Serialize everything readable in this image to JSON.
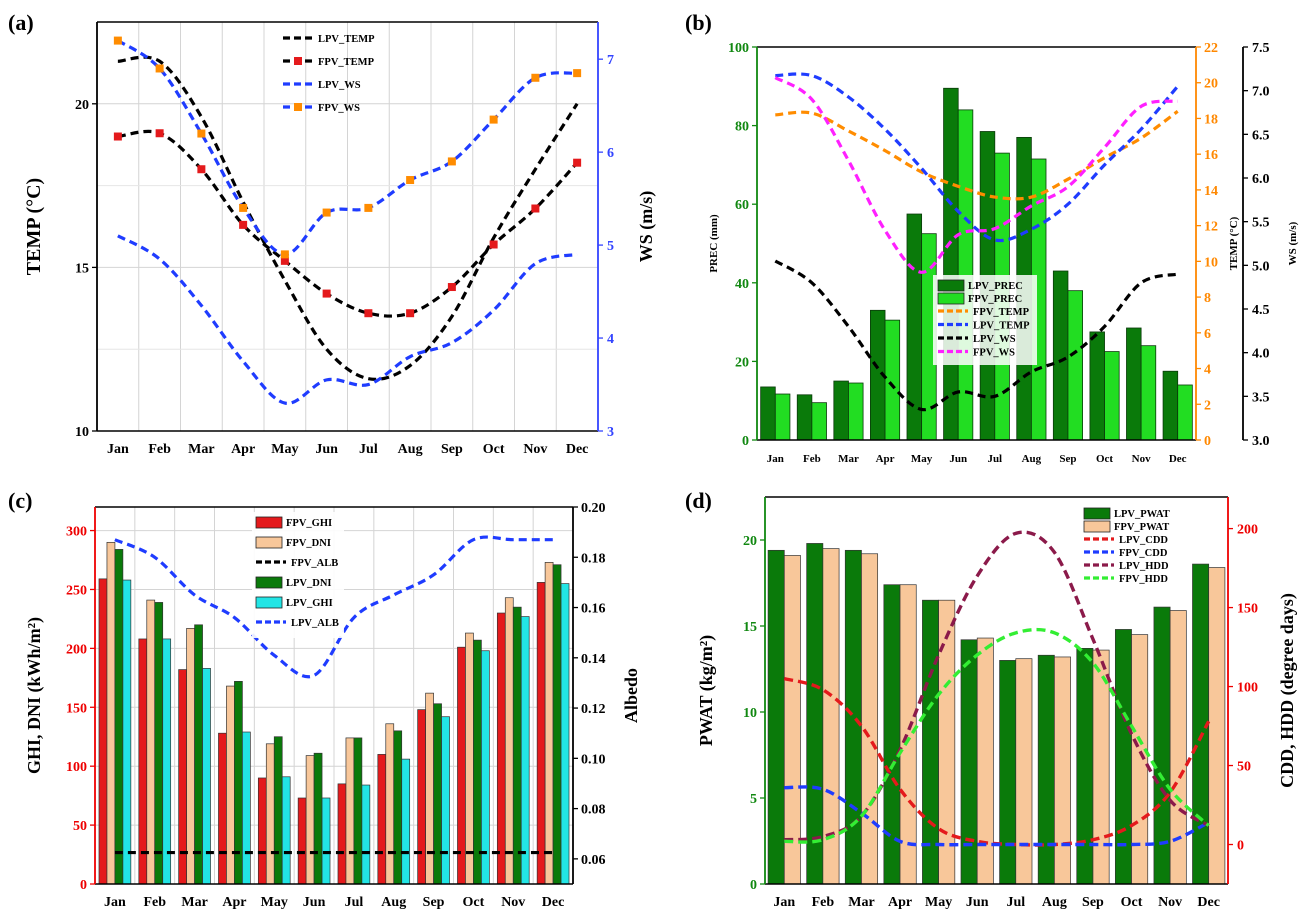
{
  "colors": {
    "black": "#000000",
    "red": "#e41a1c",
    "orange": "#ff8c00",
    "blue": "#1f3cff",
    "dark_green": "#0a7a0a",
    "light_green": "#22dd22",
    "tan": "#f8c79a",
    "cyan": "#22e5e5",
    "magenta": "#ff20ff",
    "maroon": "#8b1a4a",
    "lime": "#33ee33",
    "axis_red": "#ee0000",
    "axis_blue": "#3344ff",
    "axis_green": "#118811",
    "axis_orange": "#ff8800",
    "grid": "#d4d4d4"
  },
  "chart_data": [
    {
      "panel_label": "(a)",
      "type": "line",
      "categories": [
        "Jan",
        "Feb",
        "Mar",
        "Apr",
        "May",
        "Jun",
        "Jul",
        "Aug",
        "Sep",
        "Oct",
        "Nov",
        "Dec"
      ],
      "ylabel": "TEMP (°C)",
      "y2label": "WS (m/s)",
      "ylim": [
        10,
        22.5
      ],
      "y2lim": [
        3,
        7.4
      ],
      "yticks": [
        10,
        15,
        20
      ],
      "y2ticks": [
        3,
        4,
        5,
        6,
        7
      ],
      "grid": true,
      "legend_position": "top-center",
      "series": [
        {
          "name": "LPV_TEMP",
          "axis": "left",
          "color": "black",
          "marker": false,
          "values": [
            21.3,
            21.3,
            19.6,
            17.0,
            14.6,
            12.5,
            11.6,
            12.0,
            13.5,
            15.9,
            18.0,
            20.0
          ]
        },
        {
          "name": "FPV_TEMP",
          "axis": "left",
          "color": "black",
          "marker": true,
          "marker_color": "red",
          "values": [
            19.0,
            19.1,
            18.0,
            16.3,
            15.2,
            14.2,
            13.6,
            13.6,
            14.4,
            15.7,
            16.8,
            18.2
          ]
        },
        {
          "name": "LPV_WS",
          "axis": "right",
          "color": "blue",
          "marker": false,
          "values": [
            5.1,
            4.85,
            4.35,
            3.75,
            3.3,
            3.55,
            3.5,
            3.8,
            3.95,
            4.3,
            4.8,
            4.9
          ]
        },
        {
          "name": "FPV_WS",
          "axis": "right",
          "color": "blue",
          "marker": true,
          "marker_color": "orange",
          "values": [
            7.2,
            6.9,
            6.2,
            5.4,
            4.9,
            5.35,
            5.4,
            5.7,
            5.9,
            6.35,
            6.8,
            6.85
          ]
        }
      ]
    },
    {
      "panel_label": "(b)",
      "type": "bar",
      "categories": [
        "Jan",
        "Feb",
        "Mar",
        "Apr",
        "May",
        "Jun",
        "Jul",
        "Aug",
        "Sep",
        "Oct",
        "Nov",
        "Dec"
      ],
      "ylabel": "PREC (mm)",
      "y2label": "TEMP (°C)",
      "y3label": "WS (m/s)",
      "ylim": [
        0,
        100
      ],
      "y2lim": [
        0,
        22
      ],
      "y3lim": [
        3.0,
        7.5
      ],
      "yticks": [
        0,
        20,
        40,
        60,
        80,
        100
      ],
      "y2ticks": [
        0,
        2,
        4,
        6,
        8,
        10,
        12,
        14,
        16,
        18,
        20,
        22
      ],
      "y3ticks": [
        "3.0",
        "3.5",
        "4.0",
        "4.5",
        "5.0",
        "5.5",
        "6.0",
        "6.5",
        "7.0",
        "7.5"
      ],
      "legend_position": "center",
      "bars": [
        {
          "name": "LPV_PREC",
          "color": "dark_green",
          "values": [
            13.5,
            11.5,
            15,
            33,
            57.5,
            89.5,
            78.5,
            77,
            43,
            27.5,
            28.5,
            17.5
          ]
        },
        {
          "name": "FPV_PREC",
          "color": "light_green",
          "values": [
            11.7,
            9.5,
            14.5,
            30.5,
            52.5,
            84,
            73,
            71.5,
            38,
            22.5,
            24,
            14
          ]
        }
      ],
      "lines": [
        {
          "name": "FPV_TEMP",
          "axis": "temp",
          "color": "orange",
          "values": [
            18.2,
            18.3,
            17.3,
            16.2,
            15.0,
            14.2,
            13.6,
            13.6,
            14.6,
            15.8,
            16.9,
            18.4
          ]
        },
        {
          "name": "LPV_TEMP",
          "axis": "temp",
          "color": "blue",
          "values": [
            20.4,
            20.4,
            19.2,
            17.4,
            15.2,
            12.8,
            11.2,
            11.8,
            13.2,
            15.4,
            17.4,
            19.8
          ]
        },
        {
          "name": "LPV_WS",
          "axis": "ws",
          "color": "black",
          "values": [
            5.05,
            4.8,
            4.3,
            3.72,
            3.35,
            3.55,
            3.5,
            3.78,
            3.95,
            4.3,
            4.8,
            4.9
          ]
        },
        {
          "name": "FPV_WS",
          "axis": "ws",
          "color": "magenta",
          "values": [
            7.15,
            6.9,
            6.2,
            5.4,
            4.92,
            5.35,
            5.42,
            5.68,
            5.9,
            6.35,
            6.82,
            6.88
          ]
        }
      ]
    },
    {
      "panel_label": "(c)",
      "type": "bar",
      "categories": [
        "Jan",
        "Feb",
        "Mar",
        "Apr",
        "May",
        "Jun",
        "Jul",
        "Aug",
        "Sep",
        "Oct",
        "Nov",
        "Dec"
      ],
      "ylabel": "GHI, DNI (kWh/m²)",
      "y2label": "Albedo",
      "ylim": [
        0,
        320
      ],
      "y2lim": [
        0.05,
        0.2
      ],
      "yticks": [
        0,
        50,
        100,
        150,
        200,
        250,
        300
      ],
      "y2ticks": [
        "0.06",
        "0.08",
        "0.10",
        "0.12",
        "0.14",
        "0.16",
        "0.18",
        "0.20"
      ],
      "legend_position": "top-center",
      "bars": [
        {
          "name": "FPV_GHI",
          "color": "red",
          "values": [
            259,
            208,
            182,
            128,
            90,
            73,
            85,
            110,
            148,
            201,
            230,
            256
          ]
        },
        {
          "name": "FPV_DNI",
          "color": "tan",
          "values": [
            290,
            241,
            217,
            168,
            119,
            109,
            124,
            136,
            162,
            213,
            243,
            273
          ]
        },
        {
          "name": "LPV_DNI",
          "color": "dark_green",
          "values": [
            284,
            239,
            220,
            172,
            125,
            111,
            124,
            130,
            153,
            207,
            235,
            271
          ]
        },
        {
          "name": "LPV_GHI",
          "color": "cyan",
          "values": [
            258,
            208,
            183,
            129,
            91,
            73,
            84,
            106,
            142,
            198,
            227,
            255
          ]
        }
      ],
      "lines": [
        {
          "name": "FPV_ALB",
          "color": "black",
          "values": [
            0.0625,
            0.0625,
            0.0625,
            0.0625,
            0.0625,
            0.0625,
            0.0625,
            0.0625,
            0.0625,
            0.0625,
            0.0625,
            0.0625
          ]
        },
        {
          "name": "LPV_ALB",
          "color": "blue",
          "values": [
            0.187,
            0.18,
            0.165,
            0.156,
            0.141,
            0.133,
            0.156,
            0.165,
            0.173,
            0.187,
            0.187,
            0.187
          ]
        }
      ]
    },
    {
      "panel_label": "(d)",
      "type": "bar",
      "categories": [
        "Jan",
        "Feb",
        "Mar",
        "Apr",
        "May",
        "Jun",
        "Jul",
        "Aug",
        "Sep",
        "Oct",
        "Nov",
        "Dec"
      ],
      "ylabel": "PWAT (kg/m²)",
      "y2label": "CDD, HDD (degree days)",
      "ylim": [
        0,
        22.5
      ],
      "y2lim": [
        -25,
        220
      ],
      "yticks": [
        0,
        5,
        10,
        15,
        20
      ],
      "y2ticks": [
        0,
        50,
        100,
        150,
        200
      ],
      "legend_position": "top-right",
      "bars": [
        {
          "name": "LPV_PWAT",
          "color": "dark_green",
          "values": [
            19.4,
            19.8,
            19.4,
            17.4,
            16.5,
            14.2,
            13.0,
            13.3,
            13.7,
            14.8,
            16.1,
            18.6
          ]
        },
        {
          "name": "FPV_PWAT",
          "color": "tan",
          "values": [
            19.1,
            19.5,
            19.2,
            17.4,
            16.5,
            14.3,
            13.1,
            13.2,
            13.6,
            14.5,
            15.9,
            18.4
          ]
        }
      ],
      "lines": [
        {
          "name": "LPV_CDD",
          "color": "red",
          "values": [
            105,
            98,
            75,
            35,
            10,
            2,
            0,
            0,
            3,
            12,
            33,
            78
          ]
        },
        {
          "name": "FPV_CDD",
          "color": "blue",
          "values": [
            36,
            35,
            20,
            2,
            0,
            0,
            0,
            0,
            0,
            0,
            2,
            14
          ]
        },
        {
          "name": "LPV_HDD",
          "color": "maroon",
          "values": [
            3,
            5,
            18,
            60,
            120,
            170,
            197,
            185,
            130,
            70,
            28,
            12
          ]
        },
        {
          "name": "FPV_HDD",
          "color": "lime",
          "values": [
            2,
            3,
            18,
            58,
            95,
            120,
            134,
            134,
            115,
            75,
            35,
            12
          ]
        }
      ]
    }
  ]
}
